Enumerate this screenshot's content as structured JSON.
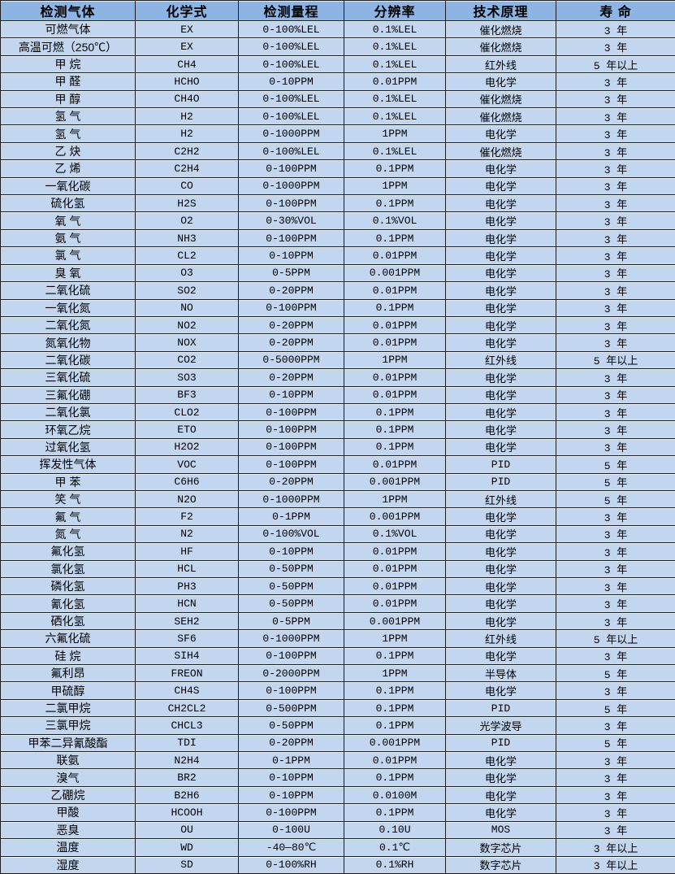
{
  "colors": {
    "header_bg": "#8DB4E2",
    "row_bg": "#C3D6EF",
    "border": "#1c1c1c"
  },
  "table": {
    "headers": [
      "检测气体",
      "化学式",
      "检测量程",
      "分辨率",
      "技术原理",
      "寿 命"
    ],
    "rows": [
      [
        "可燃气体",
        "EX",
        "0-100%LEL",
        "0.1%LEL",
        "催化燃烧",
        "3 年"
      ],
      [
        "高温可燃（250℃）",
        "EX",
        "0-100%LEL",
        "0.1%LEL",
        "催化燃烧",
        "3 年"
      ],
      [
        "甲 烷",
        "CH4",
        "0-100%LEL",
        "0.1%LEL",
        "红外线",
        "5 年以上"
      ],
      [
        "甲 醛",
        "HCHO",
        "0-10PPM",
        "0.01PPM",
        "电化学",
        "3 年"
      ],
      [
        "甲 醇",
        "CH4O",
        "0-100%LEL",
        "0.1%LEL",
        "催化燃烧",
        "3 年"
      ],
      [
        "氢 气",
        "H2",
        "0-100%LEL",
        "0.1%LEL",
        "催化燃烧",
        "3 年"
      ],
      [
        "氢 气",
        "H2",
        "0-1000PPM",
        "1PPM",
        "电化学",
        "3 年"
      ],
      [
        "乙 炔",
        "C2H2",
        "0-100%LEL",
        "0.1%LEL",
        "催化燃烧",
        "3 年"
      ],
      [
        "乙 烯",
        "C2H4",
        "0-100PPM",
        "0.1PPM",
        "电化学",
        "3 年"
      ],
      [
        "一氧化碳",
        "CO",
        "0-1000PPM",
        "1PPM",
        "电化学",
        "3 年"
      ],
      [
        "硫化氢",
        "H2S",
        "0-100PPM",
        "0.1PPM",
        "电化学",
        "3 年"
      ],
      [
        "氧 气",
        "O2",
        "0-30%VOL",
        "0.1%VOL",
        "电化学",
        "3 年"
      ],
      [
        "氨 气",
        "NH3",
        "0-100PPM",
        "0.1PPM",
        "电化学",
        "3 年"
      ],
      [
        "氯 气",
        "CL2",
        "0-10PPM",
        "0.01PPM",
        "电化学",
        "3 年"
      ],
      [
        "臭 氧",
        "O3",
        "0-5PPM",
        "0.001PPM",
        "电化学",
        "3 年"
      ],
      [
        "二氧化硫",
        "SO2",
        "0-20PPM",
        "0.01PPM",
        "电化学",
        "3 年"
      ],
      [
        "一氧化氮",
        "NO",
        "0-100PPM",
        "0.1PPM",
        "电化学",
        "3 年"
      ],
      [
        "二氧化氮",
        "NO2",
        "0-20PPM",
        "0.01PPM",
        "电化学",
        "3 年"
      ],
      [
        "氮氧化物",
        "NOX",
        "0-20PPM",
        "0.01PPM",
        "电化学",
        "3 年"
      ],
      [
        "二氧化碳",
        "CO2",
        "0-5000PPM",
        "1PPM",
        "红外线",
        "5 年以上"
      ],
      [
        "三氧化硫",
        "SO3",
        "0-20PPM",
        "0.01PPM",
        "电化学",
        "3 年"
      ],
      [
        "三氟化硼",
        "BF3",
        "0-10PPM",
        "0.01PPM",
        "电化学",
        "3 年"
      ],
      [
        "二氧化氯",
        "CLO2",
        "0-100PPM",
        "0.1PPM",
        "电化学",
        "3 年"
      ],
      [
        "环氧乙烷",
        "ETO",
        "0-100PPM",
        "0.1PPM",
        "电化学",
        "3 年"
      ],
      [
        "过氧化氢",
        "H2O2",
        "0-100PPM",
        "0.1PPM",
        "电化学",
        "3 年"
      ],
      [
        "挥发性气体",
        "VOC",
        "0-100PPM",
        "0.01PPM",
        "PID",
        "5 年"
      ],
      [
        "甲 苯",
        "C6H6",
        "0-20PPM",
        "0.001PPM",
        "PID",
        "5 年"
      ],
      [
        "笑 气",
        "N2O",
        "0-1000PPM",
        "1PPM",
        "红外线",
        "5 年"
      ],
      [
        "氟 气",
        "F2",
        "0-1PPM",
        "0.001PPM",
        "电化学",
        "3 年"
      ],
      [
        "氮 气",
        "N2",
        "0-100%VOL",
        "0.1%VOL",
        "电化学",
        "3 年"
      ],
      [
        "氟化氢",
        "HF",
        "0-10PPM",
        "0.01PPM",
        "电化学",
        "3 年"
      ],
      [
        "氯化氢",
        "HCL",
        "0-50PPM",
        "0.01PPM",
        "电化学",
        "3 年"
      ],
      [
        "磷化氢",
        "PH3",
        "0-50PPM",
        "0.01PPM",
        "电化学",
        "3 年"
      ],
      [
        "氰化氢",
        "HCN",
        "0-50PPM",
        "0.01PPM",
        "电化学",
        "3 年"
      ],
      [
        "硒化氢",
        "SEH2",
        "0-5PPM",
        "0.001PPM",
        "电化学",
        "3 年"
      ],
      [
        "六氟化硫",
        "SF6",
        "0-1000PPM",
        "1PPM",
        "红外线",
        "5 年以上"
      ],
      [
        "硅 烷",
        "SIH4",
        "0-100PPM",
        "0.1PPM",
        "电化学",
        "3 年"
      ],
      [
        "氟利昂",
        "FREON",
        "0-2000PPM",
        "1PPM",
        "半导体",
        "5 年"
      ],
      [
        "甲硫醇",
        "CH4S",
        "0-100PPM",
        "0.1PPM",
        "电化学",
        "3 年"
      ],
      [
        "二氯甲烷",
        "CH2CL2",
        "0-500PPM",
        "0.1PPM",
        "PID",
        "5 年"
      ],
      [
        "三氯甲烷",
        "CHCL3",
        "0-50PPM",
        "0.1PPM",
        "光学波导",
        "3 年"
      ],
      [
        "甲苯二异氰酸酯",
        "TDI",
        "0-20PPM",
        "0.001PPM",
        "PID",
        "5 年"
      ],
      [
        "联氨",
        "N2H4",
        "0-1PPM",
        "0.01PPM",
        "电化学",
        "3 年"
      ],
      [
        "溴气",
        "BR2",
        "0-10PPM",
        "0.1PPM",
        "电化学",
        "3 年"
      ],
      [
        "乙硼烷",
        "B2H6",
        "0-10PPM",
        "0.0100M",
        "电化学",
        "3 年"
      ],
      [
        "甲酸",
        "HCOOH",
        "0-100PPM",
        "0.1PPM",
        "电化学",
        "3 年"
      ],
      [
        "恶臭",
        "OU",
        "0-100U",
        "0.10U",
        "MOS",
        "3 年"
      ],
      [
        "温度",
        "WD",
        "-40—80℃",
        "0.1℃",
        "数字芯片",
        "3 年以上"
      ],
      [
        "湿度",
        "SD",
        "0-100%RH",
        "0.1%RH",
        "数字芯片",
        "3 年以上"
      ]
    ]
  }
}
